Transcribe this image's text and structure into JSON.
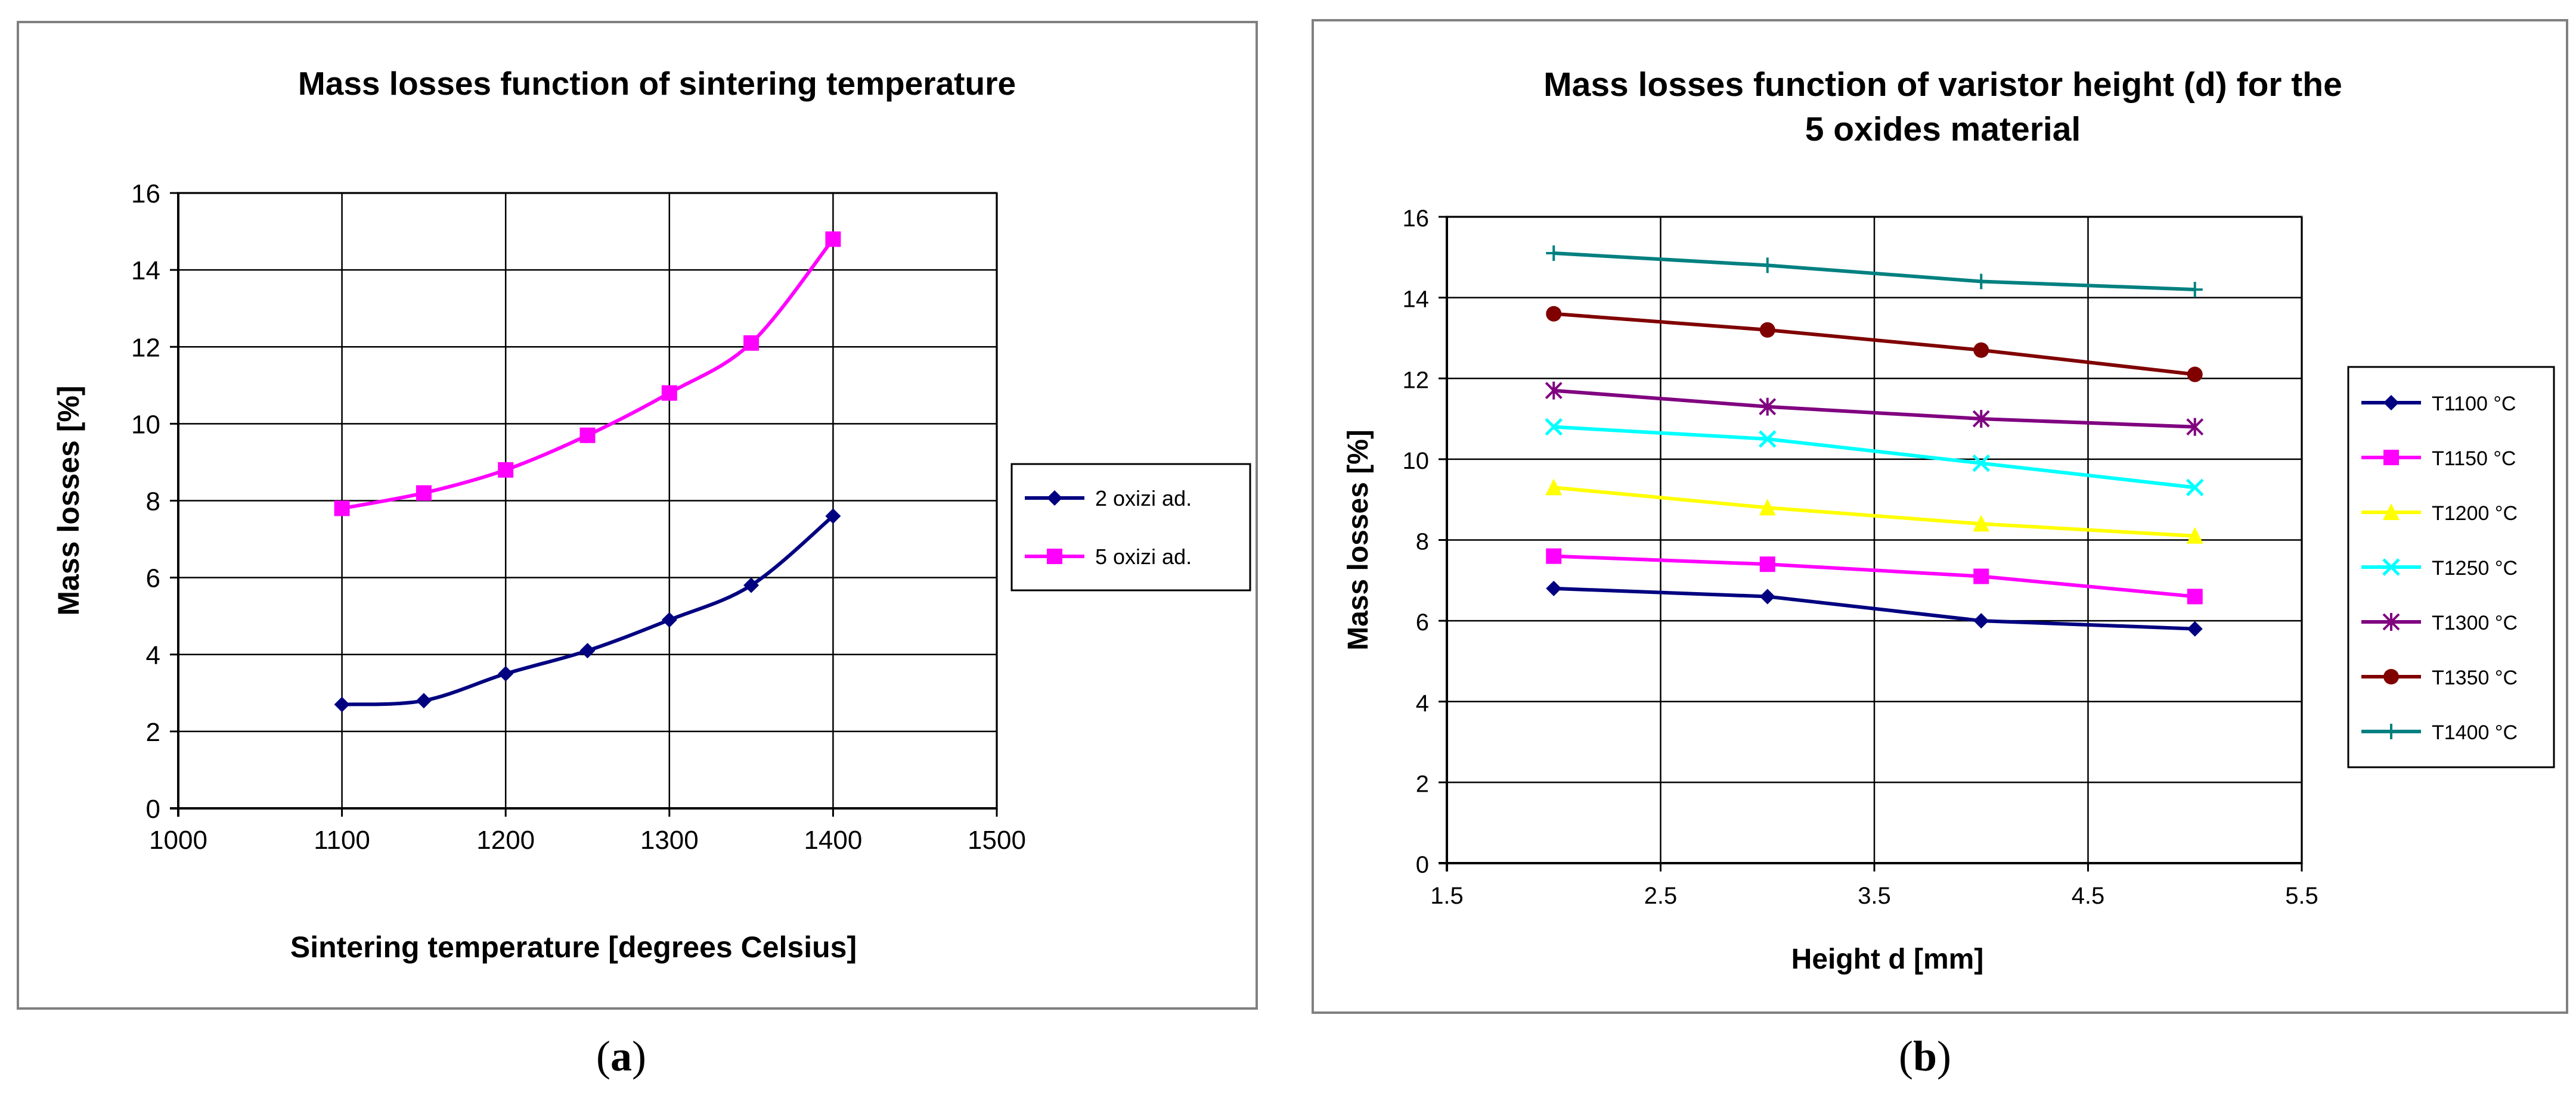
{
  "chart_data": [
    {
      "type": "line",
      "title": "Mass losses function of sintering temperature",
      "xlabel": "Sintering temperature [degrees Celsius]",
      "ylabel": "Mass losses [%]",
      "xlim": [
        1000,
        1500
      ],
      "ylim": [
        0,
        16
      ],
      "xticks": [
        1000,
        1100,
        1200,
        1300,
        1400,
        1500
      ],
      "yticks": [
        0,
        2,
        4,
        6,
        8,
        10,
        12,
        14,
        16
      ],
      "grid": true,
      "smooth": true,
      "legend_position": "right",
      "x": [
        1100,
        1150,
        1200,
        1250,
        1300,
        1350,
        1400
      ],
      "series": [
        {
          "name": "2 oxizi ad.",
          "color": "#000080",
          "marker": "diamond",
          "values": [
            2.7,
            2.8,
            3.5,
            4.1,
            4.9,
            5.8,
            7.6
          ]
        },
        {
          "name": "5 oxizi ad.",
          "color": "#FF00FF",
          "marker": "square",
          "values": [
            7.8,
            8.2,
            8.8,
            9.7,
            10.8,
            12.1,
            14.8
          ]
        }
      ]
    },
    {
      "type": "line",
      "title": [
        "Mass losses function of varistor height (d) for the",
        "5 oxides material"
      ],
      "xlabel": "Height d [mm]",
      "ylabel": "Mass losses [%]",
      "xlim": [
        1.5,
        5.5
      ],
      "ylim": [
        0,
        16
      ],
      "xticks": [
        1.5,
        2.5,
        3.5,
        4.5,
        5.5
      ],
      "yticks": [
        0,
        2,
        4,
        6,
        8,
        10,
        12,
        14,
        16
      ],
      "grid": true,
      "smooth": false,
      "legend_position": "right",
      "x": [
        2,
        3,
        4,
        5
      ],
      "series": [
        {
          "name": "T1100 °C",
          "color": "#000080",
          "marker": "diamond",
          "values": [
            6.8,
            6.6,
            6.0,
            5.8
          ]
        },
        {
          "name": "T1150 °C",
          "color": "#FF00FF",
          "marker": "square",
          "values": [
            7.6,
            7.4,
            7.1,
            6.6
          ]
        },
        {
          "name": "T1200 °C",
          "color": "#FFFF00",
          "marker": "triangle",
          "values": [
            9.3,
            8.8,
            8.4,
            8.1
          ]
        },
        {
          "name": "T1250 °C",
          "color": "#00FFFF",
          "marker": "x",
          "values": [
            10.8,
            10.5,
            9.9,
            9.3
          ]
        },
        {
          "name": "T1300 °C",
          "color": "#800080",
          "marker": "star",
          "values": [
            11.7,
            11.3,
            11.0,
            10.8
          ]
        },
        {
          "name": "T1350 °C",
          "color": "#800000",
          "marker": "circle",
          "values": [
            13.6,
            13.2,
            12.7,
            12.1
          ]
        },
        {
          "name": "T1400 °C",
          "color": "#008080",
          "marker": "plus",
          "values": [
            15.1,
            14.8,
            14.4,
            14.2
          ]
        }
      ]
    }
  ],
  "captions": {
    "a": "a",
    "b": "b"
  }
}
